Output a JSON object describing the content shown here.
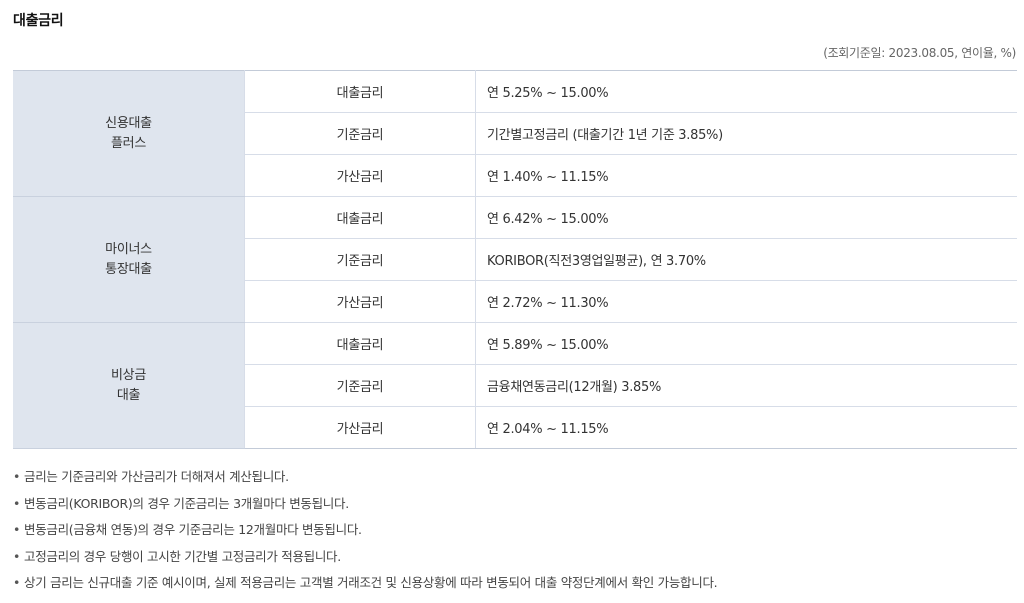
{
  "page": {
    "title": "대출금리",
    "ref_note": "(조회기준일: 2023.08.05, 연이율, %)"
  },
  "table": {
    "groups": [
      {
        "product": [
          "신용대출",
          "플러스"
        ],
        "rows": [
          {
            "type": "대출금리",
            "value": "연 5.25% ~ 15.00%"
          },
          {
            "type": "기준금리",
            "value": "기간별고정금리 (대출기간 1년 기준 3.85%)"
          },
          {
            "type": "가산금리",
            "value": "연 1.40% ~ 11.15%"
          }
        ]
      },
      {
        "product": [
          "마이너스",
          "통장대출"
        ],
        "rows": [
          {
            "type": "대출금리",
            "value": "연 6.42% ~ 15.00%"
          },
          {
            "type": "기준금리",
            "value": "KORIBOR(직전3영업일평균), 연 3.70%"
          },
          {
            "type": "가산금리",
            "value": "연 2.72% ~ 11.30%"
          }
        ]
      },
      {
        "product": [
          "비상금",
          "대출"
        ],
        "rows": [
          {
            "type": "대출금리",
            "value": "연 5.89% ~ 15.00%"
          },
          {
            "type": "기준금리",
            "value": "금융채연동금리(12개월) 3.85%"
          },
          {
            "type": "가산금리",
            "value": "연 2.04% ~ 11.15%"
          }
        ]
      }
    ]
  },
  "notes": {
    "bullet": "•",
    "items": [
      "금리는 기준금리와 가산금리가 더해져서 계산됩니다.",
      "변동금리(KORIBOR)의 경우 기준금리는 3개월마다 변동됩니다.",
      "변동금리(금융채 연동)의 경우 기준금리는 12개월마다 변동됩니다.",
      "고정금리의 경우 당행이 고시한 기간별 고정금리가 적용됩니다.",
      "상기 금리는 신규대출 기준 예시이며, 실제 적용금리는 고객별 거래조건 및 신용상황에 따라 변동되어 대출 약정단계에서 확인 가능합니다."
    ]
  },
  "colors": {
    "product_bg": "#dfe5ee",
    "border": "#d7dde8",
    "text": "#333333"
  }
}
